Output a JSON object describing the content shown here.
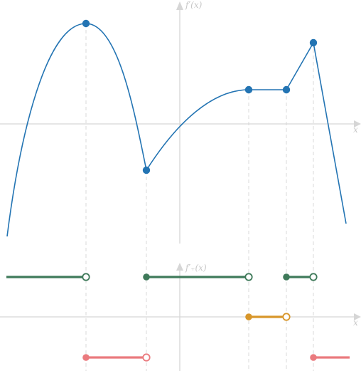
{
  "axes": {
    "top": {
      "y_label": "f′(x)",
      "x_label": "x"
    },
    "bottom": {
      "y_label": "f′₊(x)",
      "x_label": "x"
    }
  },
  "colors": {
    "curve": "#2374b3",
    "positive": "#3f7a5a",
    "zero": "#d8962a",
    "negative": "#ea7a7e",
    "axis": "#d6d6d6",
    "guide": "#d9d9d9"
  },
  "marked_points": [
    {
      "id": "p1",
      "label": "local-max"
    },
    {
      "id": "p2",
      "label": "local-min"
    },
    {
      "id": "p3",
      "label": "plateau-start"
    },
    {
      "id": "p4",
      "label": "plateau-end"
    },
    {
      "id": "p5",
      "label": "peak"
    }
  ],
  "sign_segments": [
    {
      "id": "pos-1",
      "sign": "positive",
      "start": "open-left",
      "end": "open"
    },
    {
      "id": "pos-2",
      "sign": "positive",
      "start": "closed",
      "end": "open"
    },
    {
      "id": "pos-3",
      "sign": "positive",
      "start": "closed",
      "end": "open"
    },
    {
      "id": "zero-1",
      "sign": "zero",
      "start": "closed",
      "end": "open"
    },
    {
      "id": "neg-1",
      "sign": "negative",
      "start": "closed",
      "end": "open"
    },
    {
      "id": "neg-2",
      "sign": "negative",
      "start": "closed",
      "end": "open-right"
    }
  ]
}
